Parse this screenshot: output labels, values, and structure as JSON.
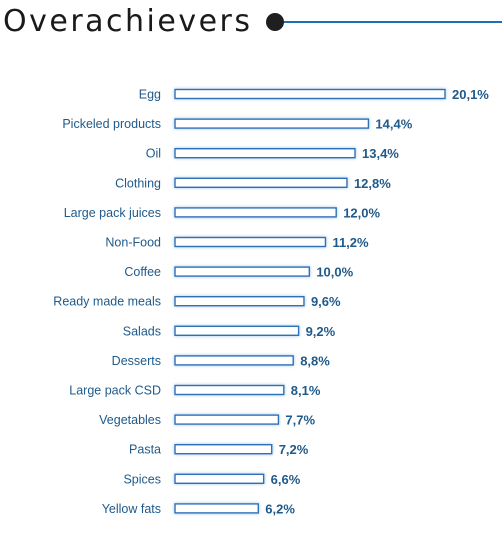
{
  "header": {
    "title": "Overachievers"
  },
  "colors": {
    "bar_fill": "#ffffff",
    "bar_border": "#2e6fb8",
    "bar_glow": "#9cc3ea",
    "label_text": "#1f5a8a",
    "rule_line": "#1f6fb5",
    "rule_dot": "#1f1f1f"
  },
  "chart_data": {
    "type": "bar",
    "orientation": "horizontal",
    "categories": [
      "Egg",
      "Pickeled products",
      "Oil",
      "Clothing",
      "Large pack juices",
      "Non-Food",
      "Coffee",
      "Ready made meals",
      "Salads",
      "Desserts",
      "Large pack CSD",
      "Vegetables",
      "Pasta",
      "Spices",
      "Yellow fats"
    ],
    "values": [
      20.1,
      14.4,
      13.4,
      12.8,
      12.0,
      11.2,
      10.0,
      9.6,
      9.2,
      8.8,
      8.1,
      7.7,
      7.2,
      6.6,
      6.2
    ],
    "value_labels": [
      "20,1%",
      "14,4%",
      "13,4%",
      "12,8%",
      "12,0%",
      "11,2%",
      "10,0%",
      "9,6%",
      "9,2%",
      "8,8%",
      "8,1%",
      "7,7%",
      "7,2%",
      "6,6%",
      "6,2%"
    ],
    "title": "Overachievers",
    "xlabel": "",
    "ylabel": "",
    "xlim": [
      0,
      20.1
    ],
    "grid": false,
    "legend": "none"
  }
}
